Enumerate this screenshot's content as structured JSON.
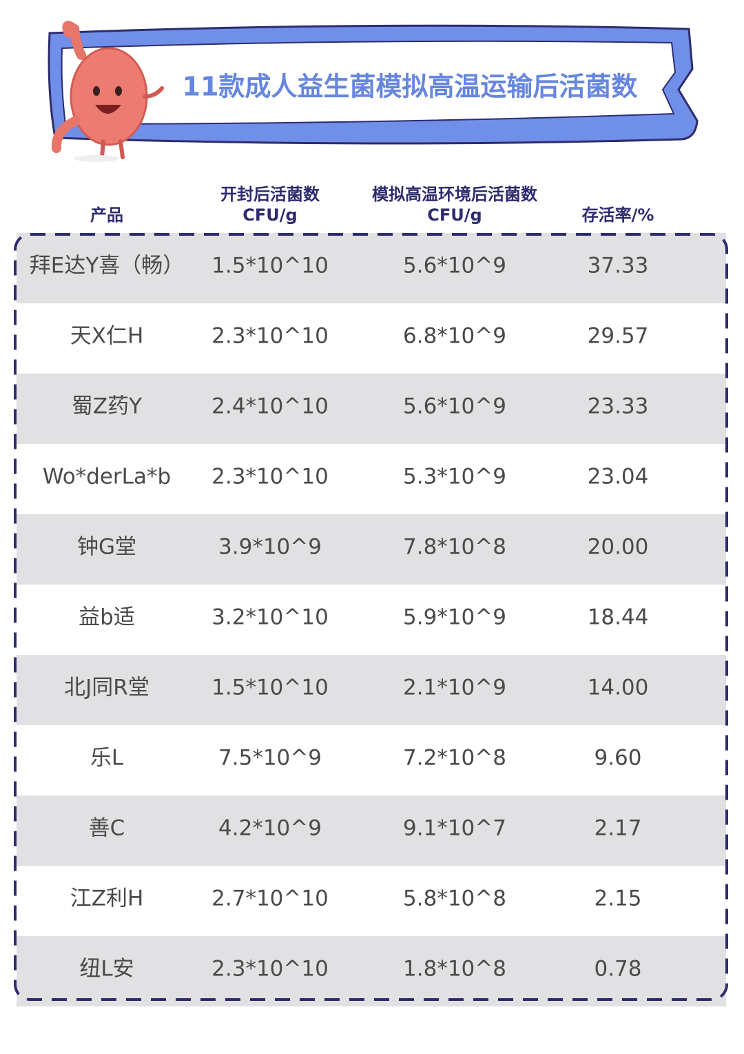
{
  "title": "11款成人益生菌模拟高温运输后活菌数",
  "table": {
    "header": [
      [
        "产品"
      ],
      [
        "开封后活菌数",
        "CFU/g"
      ],
      [
        "模拟高温环境后活菌数",
        "CFU/g"
      ],
      [
        "存活率/%"
      ]
    ],
    "rows": [
      [
        "拜E达Y喜（畅）",
        "1.5*10^10",
        "5.6*10^9",
        "37.33"
      ],
      [
        "天X仁H",
        "2.3*10^10",
        "6.8*10^9",
        "29.57"
      ],
      [
        "蜀Z药Y",
        "2.4*10^10",
        "5.6*10^9",
        "23.33"
      ],
      [
        "Wo*derLa*b",
        "2.3*10^10",
        "5.3*10^9",
        "23.04"
      ],
      [
        "钟G堂",
        "3.9*10^9",
        "7.8*10^8",
        "20.00"
      ],
      [
        "益b适",
        "3.2*10^10",
        "5.9*10^9",
        "18.44"
      ],
      [
        "北J同R堂",
        "1.5*10^10",
        "2.1*10^9",
        "14.00"
      ],
      [
        "乐L",
        "7.5*10^9",
        "7.2*10^8",
        "9.60"
      ],
      [
        "善C",
        "4.2*10^9",
        "9.1*10^7",
        "2.17"
      ],
      [
        "江Z利H",
        "2.7*10^10",
        "5.8*10^8",
        "2.15"
      ],
      [
        "纽L安",
        "2.3*10^10",
        "1.8*10^8",
        "0.78"
      ]
    ]
  }
}
